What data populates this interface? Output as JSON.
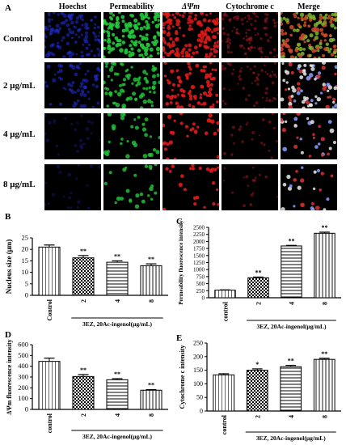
{
  "figure": {
    "panel_a": {
      "letter": "A",
      "columns": [
        "Hoechst",
        "Permeability",
        "ΔΨm",
        "Cytochrome c",
        "Merge"
      ],
      "rows": [
        "Control",
        "2 μg/mL",
        "4 μg/mL",
        "8 μg/mL"
      ],
      "channel_colors": {
        "hoechst": "#1f2fd8",
        "permeability": "#22c93a",
        "dpsim": "#e01a1a",
        "cytochrome": "#c0202a"
      }
    }
  },
  "chart_data": [
    {
      "panel": "B",
      "type": "bar",
      "categories": [
        "Control",
        "2",
        "4",
        "8"
      ],
      "values": [
        21,
        16.3,
        14.4,
        12.9
      ],
      "errors": [
        0.9,
        1.0,
        0.6,
        0.8
      ],
      "significance": [
        "",
        "**",
        "**",
        "**"
      ],
      "ylabel": "Nucleus size (μm)",
      "xlabel": "3EZ, 20Ac-ingenol(μg/mL)",
      "ylim": [
        0,
        25
      ],
      "yticks": [
        0,
        5,
        10,
        15,
        20,
        25
      ]
    },
    {
      "panel": "C",
      "type": "bar",
      "categories": [
        "control",
        "2",
        "4",
        "8"
      ],
      "values": [
        270,
        710,
        1840,
        2290
      ],
      "errors": [
        10,
        25,
        20,
        40
      ],
      "significance": [
        "",
        "**",
        "**",
        "**"
      ],
      "ylabel": "Permeability fluorescence intensity",
      "xlabel": "3EZ, 20Ac-ingenol(μg/mL)",
      "ylim": [
        0,
        2500
      ],
      "yticks": [
        0,
        250,
        500,
        750,
        1000,
        1250,
        1500,
        1750,
        2000,
        2250,
        2500
      ]
    },
    {
      "panel": "D",
      "type": "bar",
      "categories": [
        "control",
        "2",
        "4",
        "8"
      ],
      "values": [
        445,
        305,
        275,
        178
      ],
      "errors": [
        30,
        18,
        10,
        5
      ],
      "significance": [
        "",
        "**",
        "**",
        "**"
      ],
      "ylabel": "ΔΨm fluorescence intensity",
      "xlabel": "3EZ, 20Ac-ingenol(μg/mL)",
      "ylim": [
        0,
        600
      ],
      "yticks": [
        0,
        100,
        200,
        300,
        400,
        500,
        600
      ]
    },
    {
      "panel": "E",
      "type": "bar",
      "categories": [
        "control",
        "2",
        "4",
        "8"
      ],
      "values": [
        133,
        150,
        163,
        190
      ],
      "errors": [
        4,
        5,
        5,
        4
      ],
      "significance": [
        "",
        "*",
        "**",
        "**"
      ],
      "ylabel": "Cytochrome c intensity",
      "xlabel": "3EZ, 20Ac-ingenol(μg/mL)",
      "ylim": [
        0,
        250
      ],
      "yticks": [
        0,
        50,
        100,
        150,
        200,
        250
      ]
    }
  ]
}
